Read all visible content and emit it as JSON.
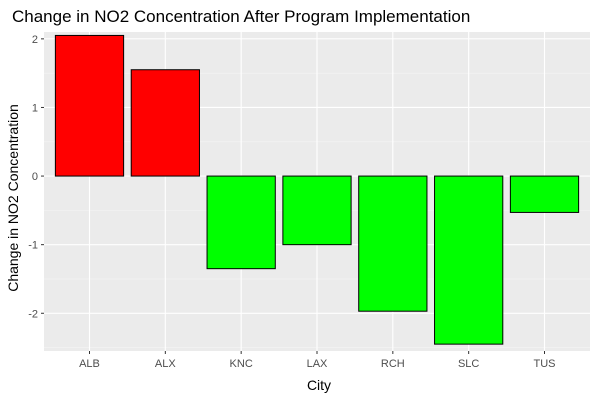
{
  "chart_data": {
    "type": "bar",
    "title": "Change in NO2 Concentration After Program Implementation",
    "xlabel": "City",
    "ylabel": "Change in NO2 Concentration",
    "categories": [
      "ALB",
      "ALX",
      "KNC",
      "LAX",
      "RCH",
      "SLC",
      "TUS"
    ],
    "values": [
      2.05,
      1.55,
      -1.35,
      -1.0,
      -1.97,
      -2.45,
      -0.53
    ],
    "ylim": [
      -2.55,
      2.1
    ],
    "yticks": [
      -2,
      -1,
      0,
      1,
      2
    ],
    "ytick_labels": [
      "-2",
      "-1",
      "0",
      "1",
      "2"
    ],
    "grid": true,
    "legend": "none",
    "colors": {
      "positive": "#ff0000",
      "negative": "#00ff00",
      "bar_outline": "#000000",
      "panel_background": "#ebebeb",
      "grid_major": "#ffffff",
      "grid_minor": "#f5f5f5",
      "text": "#000000",
      "tick_text": "#4d4d4d"
    }
  }
}
